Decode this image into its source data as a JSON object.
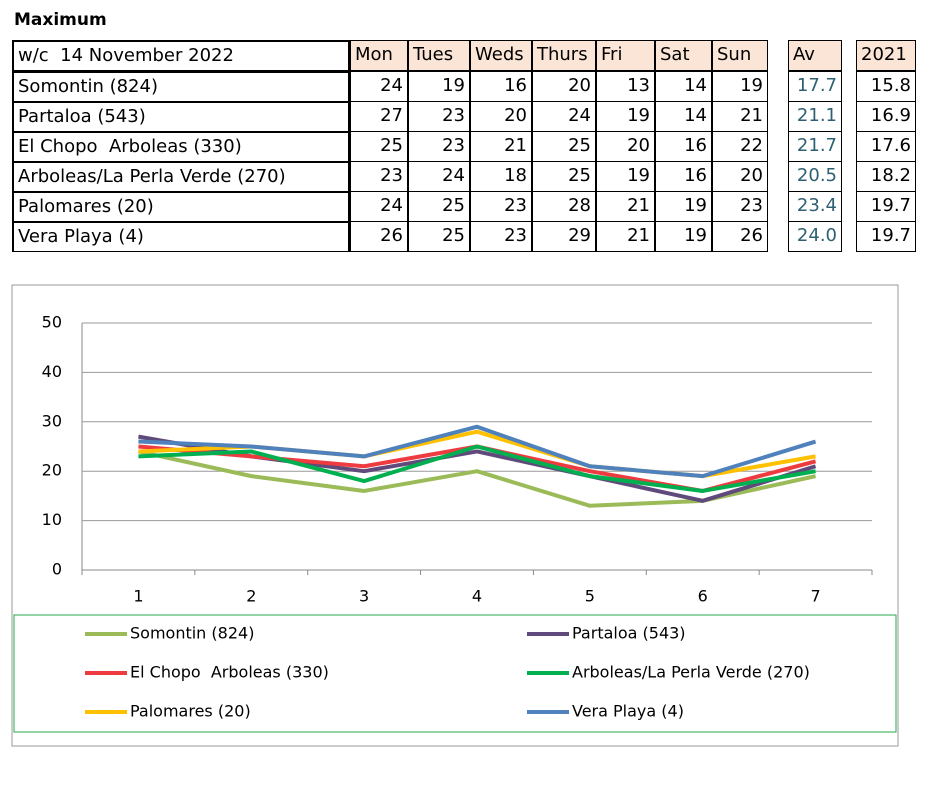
{
  "title": "Maximum",
  "table": {
    "header": [
      "w/c  14 November 2022",
      "Mon",
      "Tues",
      "Weds",
      "Thurs",
      "Fri",
      "Sat",
      "Sun",
      "Av",
      "2021"
    ],
    "rows": [
      [
        "Somontin (824)",
        24,
        19,
        16,
        20,
        13,
        14,
        19,
        17.7,
        15.8
      ],
      [
        "Partaloa (543)",
        27,
        23,
        20,
        24,
        19,
        14,
        21,
        21.1,
        16.9
      ],
      [
        "El Chopo  Arboleas (330)",
        25,
        23,
        21,
        25,
        20,
        16,
        22,
        21.7,
        17.6
      ],
      [
        "Arboleas/La Perla Verde (270)",
        23,
        24,
        18,
        25,
        19,
        16,
        20,
        20.5,
        18.2
      ],
      [
        "Palomares (20)",
        24,
        25,
        23,
        28,
        21,
        19,
        23,
        23.4,
        19.7
      ],
      [
        "Vera Playa (4)",
        26,
        25,
        23,
        29,
        21,
        19,
        26,
        "24.0",
        19.7
      ]
    ]
  },
  "chart_data": {
    "type": "line",
    "categories": [
      1,
      2,
      3,
      4,
      5,
      6,
      7
    ],
    "ylim": [
      0,
      50
    ],
    "yticks": [
      0,
      10,
      20,
      30,
      40,
      50
    ],
    "grid": true,
    "series": [
      {
        "name": "Somontin (824)",
        "color": "#9bbb59",
        "values": [
          24,
          19,
          16,
          20,
          13,
          14,
          19
        ]
      },
      {
        "name": "Partaloa (543)",
        "color": "#604a7b",
        "values": [
          27,
          23,
          20,
          24,
          19,
          14,
          21
        ]
      },
      {
        "name": "El Chopo  Arboleas (330)",
        "color": "#ee3b40",
        "values": [
          25,
          23,
          21,
          25,
          20,
          16,
          22
        ]
      },
      {
        "name": "Arboleas/La Perla Verde (270)",
        "color": "#00b050",
        "values": [
          23,
          24,
          18,
          25,
          19,
          16,
          20
        ]
      },
      {
        "name": "Palomares (20)",
        "color": "#ffc000",
        "values": [
          24,
          25,
          23,
          28,
          21,
          19,
          23
        ]
      },
      {
        "name": "Vera Playa (4)",
        "color": "#4f81bd",
        "values": [
          26,
          25,
          23,
          29,
          21,
          19,
          26
        ]
      }
    ]
  }
}
